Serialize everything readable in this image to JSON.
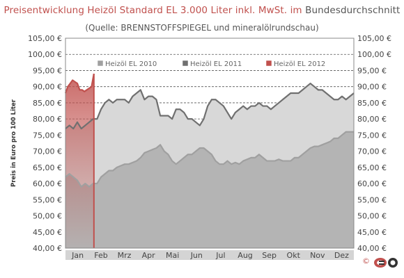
{
  "title_part1": "Preisentwicklung Heizöl Standard EL 3.000 Liter inkl. MwSt. im",
  "title_part2": "Bundesdurchschnitt",
  "subtitle": "(Quelle: BRENNSTOFFSPIEGEL und mineralölrundschau)",
  "logo_copyright": "©",
  "chart_data": {
    "type": "area",
    "ylabel": "Preis in Euro pro 100 Liter",
    "ylim": [
      40,
      105
    ],
    "ytick_step": 5,
    "ytick_labels": [
      "40,00 €",
      "45,00 €",
      "50,00 €",
      "55,00 €",
      "60,00 €",
      "65,00 €",
      "70,00 €",
      "75,00 €",
      "80,00 €",
      "85,00 €",
      "90,00 €",
      "95,00 €",
      "100,00 €",
      "105,00 €"
    ],
    "xlim": [
      0,
      365
    ],
    "months": [
      "Jan",
      "Feb",
      "Mrz",
      "Apr",
      "Mai",
      "Jun",
      "Jul",
      "Aug",
      "Sep",
      "Okt",
      "Nov",
      "Dez"
    ],
    "month_positions": [
      0,
      31,
      59,
      90,
      120,
      151,
      181,
      212,
      243,
      273,
      304,
      334
    ],
    "grid": true,
    "legend_position": "top-center",
    "series": [
      {
        "name": "Heizöl EL 2010",
        "color": "#a0a0a0",
        "fill": "#b4b4b4",
        "x": [
          0,
          5,
          10,
          15,
          20,
          25,
          30,
          35,
          40,
          45,
          50,
          55,
          60,
          65,
          70,
          75,
          80,
          85,
          90,
          95,
          100,
          105,
          110,
          115,
          120,
          125,
          130,
          135,
          140,
          145,
          150,
          155,
          160,
          165,
          170,
          175,
          180,
          185,
          190,
          195,
          200,
          205,
          210,
          215,
          220,
          225,
          230,
          235,
          240,
          245,
          250,
          255,
          260,
          265,
          270,
          275,
          280,
          285,
          290,
          295,
          300,
          305,
          310,
          315,
          320,
          325,
          330,
          335,
          340,
          345,
          350,
          355,
          360,
          365
        ],
        "y": [
          62,
          63,
          62,
          61,
          59,
          60,
          59,
          60,
          60,
          62,
          63,
          64,
          64,
          65,
          65.5,
          66,
          66,
          66.5,
          67,
          68,
          69.5,
          70,
          70.5,
          71,
          72,
          70,
          69,
          67,
          66,
          67,
          68,
          69,
          69,
          70,
          71,
          71,
          70,
          69,
          67,
          66,
          66,
          67,
          66,
          66.5,
          66,
          67,
          67.5,
          68,
          68,
          69,
          68,
          67,
          67,
          67,
          67.5,
          67,
          67,
          67,
          68,
          68,
          69,
          70,
          71,
          71.5,
          71.5,
          72,
          72.5,
          73,
          74,
          74,
          75,
          76,
          76,
          76
        ]
      },
      {
        "name": "Heizöl EL 2011",
        "color": "#707070",
        "fill": "#d8d8d8",
        "x": [
          0,
          5,
          10,
          15,
          20,
          25,
          30,
          35,
          40,
          45,
          50,
          55,
          60,
          65,
          70,
          75,
          80,
          85,
          90,
          95,
          100,
          105,
          110,
          115,
          120,
          125,
          130,
          135,
          140,
          145,
          150,
          155,
          160,
          165,
          170,
          175,
          180,
          185,
          190,
          195,
          200,
          205,
          210,
          215,
          220,
          225,
          230,
          235,
          240,
          245,
          250,
          255,
          260,
          265,
          270,
          275,
          280,
          285,
          290,
          295,
          300,
          305,
          310,
          315,
          320,
          325,
          330,
          335,
          340,
          345,
          350,
          355,
          360,
          365
        ],
        "y": [
          77,
          78,
          77,
          79,
          77,
          78,
          79,
          80,
          80,
          83,
          85,
          86,
          85,
          86,
          86,
          86,
          85,
          87,
          88,
          89,
          86,
          87,
          87,
          86,
          81,
          81,
          81,
          80,
          83,
          83,
          82,
          80,
          80,
          79,
          78,
          80,
          84,
          86,
          86,
          85,
          84,
          82,
          80,
          82,
          83,
          84,
          83,
          84,
          84,
          85,
          84,
          84,
          83,
          84,
          85,
          86,
          87,
          88,
          88,
          88,
          89,
          90,
          91,
          90,
          89,
          89,
          88,
          87,
          86,
          86,
          87,
          86,
          87,
          88
        ]
      },
      {
        "name": "Heizöl EL 2012",
        "color": "#c0504d",
        "fill": "#d99594",
        "x": [
          0,
          3,
          6,
          9,
          12,
          15,
          18,
          21,
          24,
          27,
          30,
          33,
          36
        ],
        "y": [
          88,
          90,
          91,
          92,
          91.5,
          91,
          89,
          89,
          88.5,
          89,
          89.5,
          90,
          94
        ]
      }
    ]
  }
}
